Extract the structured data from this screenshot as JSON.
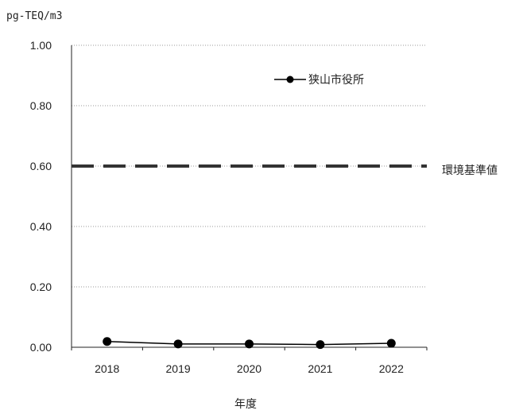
{
  "chart_data": {
    "type": "line",
    "title": "",
    "unit_label": "pg-TEQ/m3",
    "xlabel": "年度",
    "ylabel": "",
    "categories": [
      "2018",
      "2019",
      "2020",
      "2021",
      "2022"
    ],
    "ylim": [
      0,
      1.0
    ],
    "y_ticks": [
      "0.00",
      "0.20",
      "0.40",
      "0.60",
      "0.80",
      "1.00"
    ],
    "grid": true,
    "legend_position": "top-right",
    "series": [
      {
        "name": "狭山市役所",
        "values": [
          0.019,
          0.011,
          0.011,
          0.009,
          0.013
        ],
        "color": "#000000"
      }
    ],
    "reference_line": {
      "label": "環境基準値",
      "value": 0.6,
      "color": "#333333"
    }
  }
}
